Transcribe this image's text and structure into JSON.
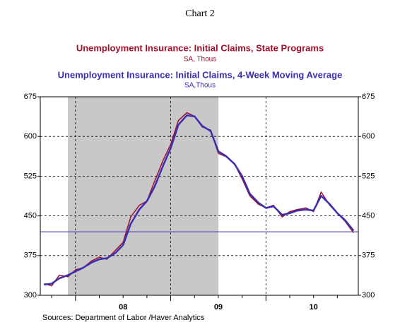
{
  "chart_data": {
    "type": "line",
    "title": "Chart 2",
    "source": "Sources:  Department of Labor /Haver Analytics",
    "x": [
      2007.67,
      2007.75,
      2007.83,
      2007.92,
      2008.0,
      2008.08,
      2008.17,
      2008.25,
      2008.33,
      2008.42,
      2008.5,
      2008.58,
      2008.67,
      2008.75,
      2008.83,
      2008.92,
      2009.0,
      2009.08,
      2009.17,
      2009.25,
      2009.33,
      2009.42,
      2009.5,
      2009.58,
      2009.67,
      2009.75,
      2009.83,
      2009.92,
      2010.0,
      2010.08,
      2010.17,
      2010.25,
      2010.33,
      2010.42,
      2010.5,
      2010.58,
      2010.67,
      2010.75,
      2010.83,
      2010.92
    ],
    "series": [
      {
        "name": "Unemployment Insurance: Initial Claims, State Programs",
        "units": "SA, Thous",
        "color": "#a0102a",
        "values": [
          322,
          318,
          338,
          335,
          348,
          352,
          365,
          372,
          368,
          385,
          400,
          448,
          470,
          478,
          515,
          555,
          585,
          630,
          645,
          638,
          618,
          612,
          568,
          562,
          548,
          520,
          488,
          472,
          465,
          470,
          448,
          458,
          462,
          465,
          458,
          495,
          470,
          455,
          440,
          418
        ]
      },
      {
        "name": "Unemployment Insurance: Initial Claims, 4-Week Moving Average",
        "units": "SA,Thous",
        "color": "#3a2fb0",
        "values": [
          320,
          322,
          332,
          338,
          345,
          352,
          362,
          368,
          370,
          380,
          395,
          435,
          462,
          478,
          505,
          545,
          578,
          622,
          640,
          638,
          620,
          610,
          572,
          563,
          548,
          525,
          492,
          475,
          465,
          468,
          452,
          455,
          460,
          462,
          460,
          488,
          472,
          455,
          442,
          422
        ]
      }
    ],
    "xlim": [
      2007.63,
      2010.97
    ],
    "xticks": [
      {
        "value": 2008.5,
        "label": "08"
      },
      {
        "value": 2009.5,
        "label": "09"
      },
      {
        "value": 2010.5,
        "label": "10"
      }
    ],
    "ylim": [
      300,
      675
    ],
    "yticks": [
      300,
      375,
      450,
      525,
      600,
      675
    ],
    "shade": [
      2007.92,
      2009.5
    ],
    "hline": 420,
    "hline_color": "#3a2fb0",
    "grid": true
  }
}
